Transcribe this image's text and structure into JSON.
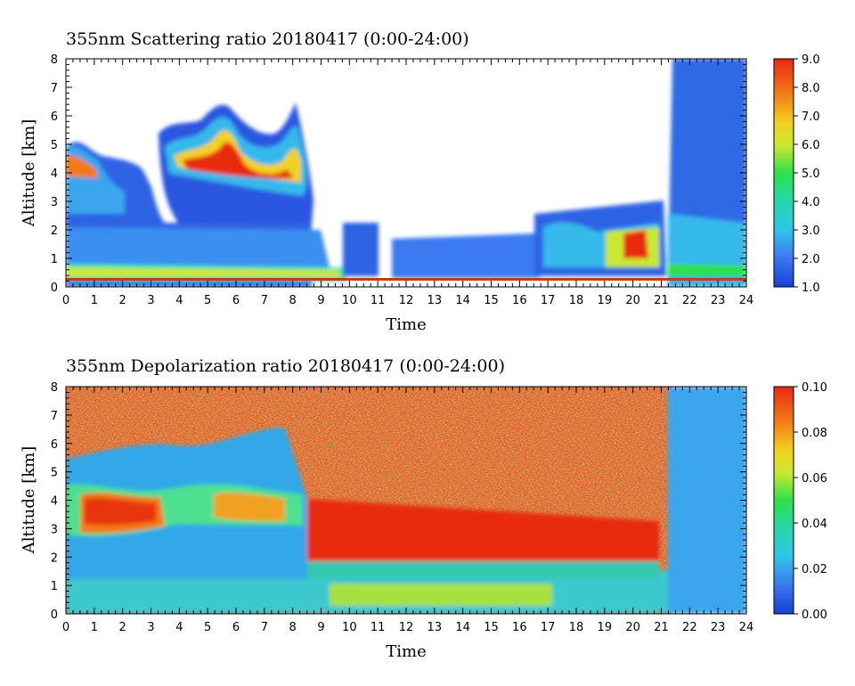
{
  "chart_data": [
    {
      "type": "heatmap",
      "title": "355nm Scattering ratio  20180417 (0:00-24:00)",
      "xlabel": "Time",
      "ylabel": "Altitude [km]",
      "xlim": [
        0,
        24
      ],
      "ylim": [
        0,
        8
      ],
      "x_ticks": [
        "0",
        "1",
        "2",
        "3",
        "4",
        "5",
        "6",
        "7",
        "8",
        "9",
        "10",
        "11",
        "12",
        "13",
        "14",
        "15",
        "16",
        "17",
        "18",
        "19",
        "20",
        "21",
        "22",
        "23",
        "24"
      ],
      "y_ticks": [
        "0",
        "1",
        "2",
        "3",
        "4",
        "5",
        "6",
        "7",
        "8"
      ],
      "colorbar": {
        "min": 1.0,
        "max": 9.0,
        "ticks": [
          "1.0",
          "2.0",
          "3.0",
          "4.0",
          "5.0",
          "6.0",
          "7.0",
          "8.0",
          "9.0"
        ]
      },
      "layers": [
        {
          "name": "surface aerosol layer",
          "t_start": 0,
          "t_end": 9.5,
          "z_bottom": 0.3,
          "z_top": 0.7,
          "value": 3.5
        },
        {
          "name": "boundary layer",
          "t_start": 0,
          "t_end": 9.0,
          "z_bottom": 0.7,
          "z_top": 2.0,
          "value": 2.0
        },
        {
          "name": "elevated aerosol layer",
          "t_start": 0,
          "t_end": 8.5,
          "z_bottom": 2.0,
          "z_top": 4.2,
          "value": 1.8
        },
        {
          "name": "cloud layer",
          "t_start": 3.2,
          "t_end": 8.5,
          "z_bottom": 3.8,
          "z_top": 6.5,
          "value": 8.5
        },
        {
          "name": "scattered low aerosol",
          "t_start": 9.5,
          "t_end": 21.0,
          "z_bottom": 0.4,
          "z_top": 2.3,
          "value": 2.0
        },
        {
          "name": "nighttime aerosol",
          "t_start": 21.2,
          "t_end": 24,
          "z_bottom": 0.3,
          "z_top": 8.0,
          "value": 1.7
        }
      ]
    },
    {
      "type": "heatmap",
      "title": "355nm Depolarization ratio  20180417 (0:00-24:00)",
      "xlabel": "Time",
      "ylabel": "Altitude [km]",
      "xlim": [
        0,
        24
      ],
      "ylim": [
        0,
        8
      ],
      "x_ticks": [
        "0",
        "1",
        "2",
        "3",
        "4",
        "5",
        "6",
        "7",
        "8",
        "9",
        "10",
        "11",
        "12",
        "13",
        "14",
        "15",
        "16",
        "17",
        "18",
        "19",
        "20",
        "21",
        "22",
        "23",
        "24"
      ],
      "y_ticks": [
        "0",
        "1",
        "2",
        "3",
        "4",
        "5",
        "6",
        "7",
        "8"
      ],
      "colorbar": {
        "min": 0.0,
        "max": 0.1,
        "ticks": [
          "0.00",
          "0.02",
          "0.04",
          "0.06",
          "0.08",
          "0.10"
        ]
      },
      "layers": [
        {
          "name": "boundary layer",
          "t_start": 0,
          "t_end": 24,
          "z_bottom": 0,
          "z_top": 1.5,
          "value": 0.025
        },
        {
          "name": "elevated layer",
          "t_start": 0,
          "t_end": 8.3,
          "z_bottom": 1.5,
          "z_top": 5.0,
          "value": 0.02
        },
        {
          "name": "dust layer",
          "t_start": 0.5,
          "t_end": 8.3,
          "z_bottom": 3.0,
          "z_top": 4.5,
          "value": 0.085
        },
        {
          "name": "noise region",
          "t_start": 0,
          "t_end": 21.2,
          "z_bottom": 5.0,
          "z_top": 8.0,
          "value": 0.08
        },
        {
          "name": "daytime noise",
          "t_start": 8.3,
          "t_end": 21.2,
          "z_bottom": 1.8,
          "z_top": 8.0,
          "value": 0.085
        },
        {
          "name": "night",
          "t_start": 21.2,
          "t_end": 24,
          "z_bottom": 0,
          "z_top": 8.0,
          "value": 0.02
        }
      ]
    }
  ]
}
